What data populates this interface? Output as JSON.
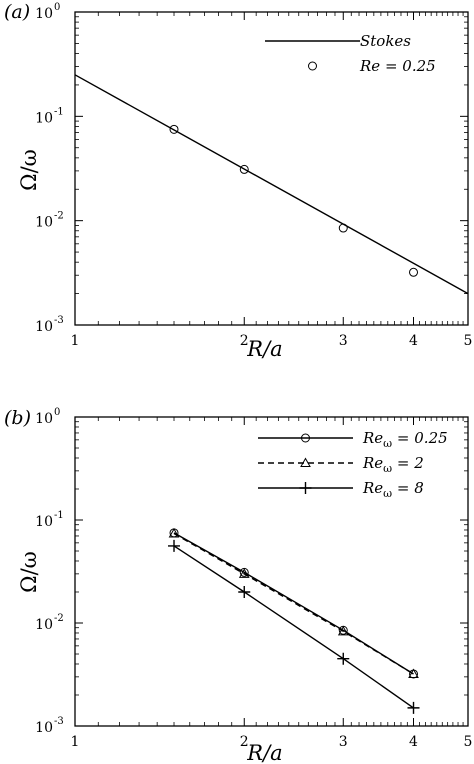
{
  "chart_data": [
    {
      "type": "line",
      "panel_label": "(a)",
      "xlabel": "R/a",
      "ylabel": "Ω/ω",
      "xscale": "log",
      "yscale": "log",
      "xlim": [
        1,
        5
      ],
      "ylim": [
        0.001,
        1
      ],
      "x_ticks": [
        {
          "value": 1,
          "label": "1"
        },
        {
          "value": 2,
          "label": "2"
        },
        {
          "value": 3,
          "label": "3"
        },
        {
          "value": 4,
          "label": "4"
        },
        {
          "value": 5,
          "label": "5"
        }
      ],
      "y_ticks": [
        {
          "value": 0.001,
          "base": "10",
          "exp": "-3"
        },
        {
          "value": 0.01,
          "base": "10",
          "exp": "-2"
        },
        {
          "value": 0.1,
          "base": "10",
          "exp": "-1"
        },
        {
          "value": 1,
          "base": "10",
          "exp": "0"
        }
      ],
      "legend_position": "top-right",
      "series": [
        {
          "name": "Stokes",
          "style": "line",
          "x": [
            1,
            5
          ],
          "y": [
            0.25,
            0.002
          ]
        },
        {
          "name": "Re = 0.25",
          "style": "circle",
          "x": [
            1.5,
            2,
            3,
            4
          ],
          "y": [
            0.075,
            0.031,
            0.0085,
            0.0032
          ]
        }
      ]
    },
    {
      "type": "line",
      "panel_label": "(b)",
      "xlabel": "R/a",
      "ylabel": "Ω/ω",
      "xscale": "log",
      "yscale": "log",
      "xlim": [
        1,
        5
      ],
      "ylim": [
        0.001,
        1
      ],
      "x_ticks": [
        {
          "value": 1,
          "label": "1"
        },
        {
          "value": 2,
          "label": "2"
        },
        {
          "value": 3,
          "label": "3"
        },
        {
          "value": 4,
          "label": "4"
        },
        {
          "value": 5,
          "label": "5"
        }
      ],
      "y_ticks": [
        {
          "value": 0.001,
          "base": "10",
          "exp": "-3"
        },
        {
          "value": 0.01,
          "base": "10",
          "exp": "-2"
        },
        {
          "value": 0.1,
          "base": "10",
          "exp": "-1"
        },
        {
          "value": 1,
          "base": "10",
          "exp": "0"
        }
      ],
      "legend_position": "top-right",
      "series": [
        {
          "name": "Reω = 0.25",
          "name_prefix": "Re",
          "name_sub": "ω",
          "name_suffix": " = 0.25",
          "style": "solid-circle",
          "x": [
            1.5,
            2,
            3,
            4
          ],
          "y": [
            0.075,
            0.031,
            0.0085,
            0.0032
          ]
        },
        {
          "name": "Reω = 2",
          "name_prefix": "Re",
          "name_sub": "ω",
          "name_suffix": " = 2",
          "style": "dashed-triangle",
          "x": [
            1.5,
            2,
            3,
            4
          ],
          "y": [
            0.074,
            0.03,
            0.0083,
            0.0032
          ]
        },
        {
          "name": "Reω = 8",
          "name_prefix": "Re",
          "name_sub": "ω",
          "name_suffix": " = 8",
          "style": "solid-plus",
          "x": [
            1.5,
            2,
            3,
            4
          ],
          "y": [
            0.056,
            0.02,
            0.0045,
            0.0015
          ]
        }
      ]
    }
  ]
}
